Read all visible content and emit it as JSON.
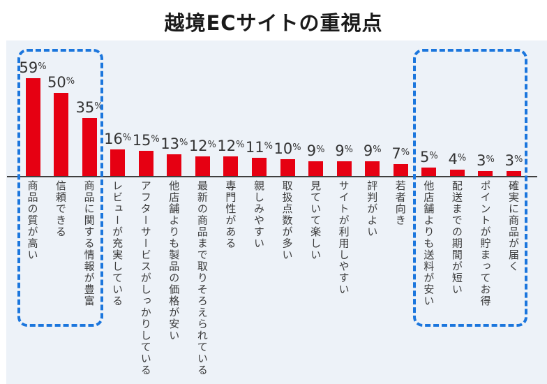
{
  "title": "越境ECサイトの重視点",
  "chart_data": {
    "type": "bar",
    "title": "越境ECサイトの重視点",
    "unit": "%",
    "categories": [
      "商品の質が高い",
      "信頼できる",
      "商品に関する情報が豊富",
      "レビューが充実している",
      "アフターサービスがしっかりしている",
      "他店舗よりも製品の価格が安い",
      "最新の商品まで取りそろえられている",
      "専門性がある",
      "親しみやすい",
      "取扱点数が多い",
      "見ていて楽しい",
      "サイトが利用しやすい",
      "評判がよい",
      "若者向き",
      "他店舗よりも送料が安い",
      "配送までの期間が短い",
      "ポイントが貯まってお得",
      "確実に商品が届く"
    ],
    "values": [
      59,
      50,
      35,
      16,
      15,
      13,
      12,
      12,
      11,
      10,
      9,
      9,
      9,
      7,
      5,
      4,
      3,
      3
    ],
    "value_labels": [
      "59%",
      "50%",
      "35%",
      "16%",
      "15%",
      "13%",
      "12%",
      "12%",
      "11%",
      "10%",
      "9%",
      "9%",
      "9%",
      "7%",
      "5%",
      "4%",
      "3%",
      "3%"
    ],
    "ylim": [
      0,
      65
    ],
    "grid": false,
    "legend": null,
    "xlabel": "",
    "ylabel": "",
    "bar_color": "#e60012",
    "panel_background": "#edf2f8",
    "highlight_color": "#1b76dd",
    "highlight_groups": [
      {
        "start_index": 0,
        "end_index": 2,
        "note": "top-3-items"
      },
      {
        "start_index": 14,
        "end_index": 17,
        "note": "last-4-items"
      }
    ]
  }
}
